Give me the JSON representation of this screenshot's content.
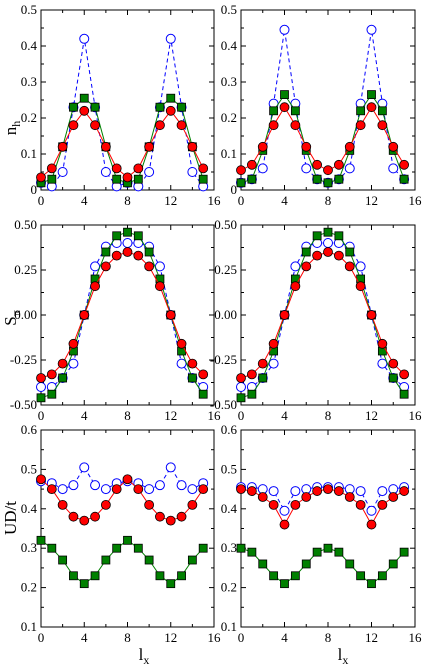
{
  "figure": {
    "row_labels": [
      "n",
      "S",
      "UD/t"
    ],
    "row_label_subs": [
      "h",
      "π",
      ""
    ],
    "xlabel": "l",
    "xlabel_sub": "x"
  },
  "chart_data": [
    {
      "type": "line",
      "row": 0,
      "col": 0,
      "title": "",
      "ylabel": "n_h",
      "xlabel": "",
      "xlim": [
        0,
        16
      ],
      "ylim": [
        0,
        0.5
      ],
      "xticks": [
        0,
        4,
        8,
        12,
        16
      ],
      "yticks": [
        0,
        0.1,
        0.2,
        0.3,
        0.4,
        0.5
      ],
      "ytick_labels": [
        "0",
        "0.1",
        "0.2",
        "0.3",
        "0.4",
        "0.5"
      ],
      "x": [
        0,
        1,
        2,
        3,
        4,
        5,
        6,
        7,
        8,
        9,
        10,
        11,
        12,
        13,
        14,
        15
      ],
      "series": [
        {
          "marker": "circle-open",
          "color": "#0000ff",
          "dash": true,
          "values": [
            0.02,
            0.01,
            0.05,
            0.23,
            0.42,
            0.23,
            0.05,
            0.01,
            0.02,
            0.01,
            0.05,
            0.23,
            0.42,
            0.23,
            0.05,
            0.01
          ]
        },
        {
          "marker": "square",
          "color": "#008000",
          "dash": false,
          "values": [
            0.02,
            0.03,
            0.12,
            0.23,
            0.255,
            0.23,
            0.12,
            0.03,
            0.02,
            0.03,
            0.12,
            0.23,
            0.255,
            0.23,
            0.12,
            0.03
          ]
        },
        {
          "marker": "circle",
          "color": "#ff0000",
          "dash": false,
          "values": [
            0.035,
            0.06,
            0.12,
            0.18,
            0.22,
            0.18,
            0.12,
            0.06,
            0.035,
            0.06,
            0.12,
            0.18,
            0.22,
            0.18,
            0.12,
            0.06
          ]
        }
      ]
    },
    {
      "type": "line",
      "row": 0,
      "col": 1,
      "title": "",
      "ylabel": "",
      "xlabel": "",
      "xlim": [
        0,
        16
      ],
      "ylim": [
        0,
        0.5
      ],
      "xticks": [
        0,
        4,
        8,
        12,
        16
      ],
      "yticks": [
        0,
        0.1,
        0.2,
        0.3,
        0.4,
        0.5
      ],
      "ytick_labels": [
        "0",
        "0.1",
        "0.2",
        "0.3",
        "0.4",
        "0.5"
      ],
      "x": [
        0,
        1,
        2,
        3,
        4,
        5,
        6,
        7,
        8,
        9,
        10,
        11,
        12,
        13,
        14,
        15
      ],
      "series": [
        {
          "marker": "circle-open",
          "color": "#0000ff",
          "dash": true,
          "values": [
            0.02,
            0.03,
            0.06,
            0.24,
            0.445,
            0.24,
            0.06,
            0.03,
            0.02,
            0.03,
            0.06,
            0.24,
            0.445,
            0.24,
            0.06,
            0.03
          ]
        },
        {
          "marker": "square",
          "color": "#008000",
          "dash": false,
          "values": [
            0.02,
            0.03,
            0.11,
            0.22,
            0.265,
            0.22,
            0.11,
            0.03,
            0.02,
            0.03,
            0.11,
            0.22,
            0.265,
            0.22,
            0.11,
            0.03
          ]
        },
        {
          "marker": "circle",
          "color": "#ff0000",
          "dash": false,
          "values": [
            0.055,
            0.07,
            0.12,
            0.18,
            0.23,
            0.18,
            0.12,
            0.07,
            0.055,
            0.07,
            0.12,
            0.18,
            0.23,
            0.18,
            0.12,
            0.07
          ]
        }
      ]
    },
    {
      "type": "line",
      "row": 1,
      "col": 0,
      "title": "",
      "ylabel": "S_π",
      "xlabel": "",
      "xlim": [
        0,
        16
      ],
      "ylim": [
        -0.5,
        0.5
      ],
      "xticks": [
        0,
        4,
        8,
        12,
        16
      ],
      "yticks": [
        -0.5,
        -0.25,
        0,
        0.25,
        0.5
      ],
      "ytick_labels": [
        "-0.50",
        "-0.25",
        "0.00",
        "0.25",
        "0.50"
      ],
      "x": [
        0,
        1,
        2,
        3,
        4,
        5,
        6,
        7,
        8,
        9,
        10,
        11,
        12,
        13,
        14,
        15
      ],
      "series": [
        {
          "marker": "circle-open",
          "color": "#0000ff",
          "dash": true,
          "values": [
            -0.4,
            -0.4,
            -0.35,
            -0.27,
            0.0,
            0.27,
            0.38,
            0.4,
            0.4,
            0.4,
            0.38,
            0.27,
            0.0,
            -0.27,
            -0.35,
            -0.4
          ]
        },
        {
          "marker": "square",
          "color": "#008000",
          "dash": false,
          "values": [
            -0.46,
            -0.44,
            -0.35,
            -0.2,
            0.0,
            0.2,
            0.35,
            0.44,
            0.46,
            0.44,
            0.35,
            0.2,
            0.0,
            -0.2,
            -0.35,
            -0.44
          ]
        },
        {
          "marker": "circle",
          "color": "#ff0000",
          "dash": false,
          "values": [
            -0.35,
            -0.33,
            -0.27,
            -0.16,
            0.0,
            0.16,
            0.27,
            0.33,
            0.35,
            0.33,
            0.27,
            0.16,
            0.0,
            -0.16,
            -0.27,
            -0.33
          ]
        }
      ]
    },
    {
      "type": "line",
      "row": 1,
      "col": 1,
      "title": "",
      "ylabel": "",
      "xlabel": "",
      "xlim": [
        0,
        16
      ],
      "ylim": [
        -0.5,
        0.5
      ],
      "xticks": [
        0,
        4,
        8,
        12,
        16
      ],
      "yticks": [
        -0.5,
        -0.25,
        0,
        0.25,
        0.5
      ],
      "ytick_labels": [
        "-0.50",
        "-0.25",
        "0.00",
        "0.25",
        "0.50"
      ],
      "x": [
        0,
        1,
        2,
        3,
        4,
        5,
        6,
        7,
        8,
        9,
        10,
        11,
        12,
        13,
        14,
        15
      ],
      "series": [
        {
          "marker": "circle-open",
          "color": "#0000ff",
          "dash": true,
          "values": [
            -0.4,
            -0.4,
            -0.35,
            -0.27,
            0.0,
            0.27,
            0.38,
            0.4,
            0.4,
            0.4,
            0.38,
            0.27,
            0.0,
            -0.27,
            -0.35,
            -0.4
          ]
        },
        {
          "marker": "square",
          "color": "#008000",
          "dash": false,
          "values": [
            -0.46,
            -0.44,
            -0.35,
            -0.2,
            0.0,
            0.2,
            0.35,
            0.44,
            0.46,
            0.44,
            0.35,
            0.2,
            0.0,
            -0.2,
            -0.35,
            -0.44
          ]
        },
        {
          "marker": "circle",
          "color": "#ff0000",
          "dash": false,
          "values": [
            -0.35,
            -0.33,
            -0.27,
            -0.16,
            0.0,
            0.16,
            0.27,
            0.33,
            0.35,
            0.33,
            0.27,
            0.16,
            0.0,
            -0.16,
            -0.27,
            -0.33
          ]
        }
      ]
    },
    {
      "type": "line",
      "row": 2,
      "col": 0,
      "title": "",
      "ylabel": "UD/t",
      "xlabel": "l_x",
      "xlim": [
        0,
        16
      ],
      "ylim": [
        0.1,
        0.6
      ],
      "xticks": [
        0,
        4,
        8,
        12,
        16
      ],
      "yticks": [
        0.1,
        0.2,
        0.3,
        0.4,
        0.5,
        0.6
      ],
      "ytick_labels": [
        "0.1",
        "0.2",
        "0.3",
        "0.4",
        "0.5",
        "0.6"
      ],
      "x": [
        0,
        1,
        2,
        3,
        4,
        5,
        6,
        7,
        8,
        9,
        10,
        11,
        12,
        13,
        14,
        15
      ],
      "series": [
        {
          "marker": "circle-open",
          "color": "#0000ff",
          "dash": true,
          "values": [
            0.47,
            0.465,
            0.45,
            0.46,
            0.505,
            0.46,
            0.45,
            0.465,
            0.47,
            0.465,
            0.45,
            0.46,
            0.505,
            0.46,
            0.45,
            0.465
          ]
        },
        {
          "marker": "square",
          "color": "#008000",
          "dash": false,
          "values": [
            0.32,
            0.3,
            0.27,
            0.23,
            0.21,
            0.23,
            0.27,
            0.3,
            0.32,
            0.3,
            0.27,
            0.23,
            0.21,
            0.23,
            0.27,
            0.3
          ]
        },
        {
          "marker": "circle",
          "color": "#ff0000",
          "dash": false,
          "values": [
            0.475,
            0.45,
            0.41,
            0.38,
            0.37,
            0.38,
            0.41,
            0.45,
            0.475,
            0.45,
            0.41,
            0.38,
            0.37,
            0.38,
            0.41,
            0.45
          ]
        }
      ]
    },
    {
      "type": "line",
      "row": 2,
      "col": 1,
      "title": "",
      "ylabel": "",
      "xlabel": "l_x",
      "xlim": [
        0,
        16
      ],
      "ylim": [
        0.1,
        0.6
      ],
      "xticks": [
        0,
        4,
        8,
        12,
        16
      ],
      "yticks": [
        0.1,
        0.2,
        0.3,
        0.4,
        0.5,
        0.6
      ],
      "ytick_labels": [
        "0.1",
        "0.2",
        "0.3",
        "0.4",
        "0.5",
        "0.6"
      ],
      "x": [
        0,
        1,
        2,
        3,
        4,
        5,
        6,
        7,
        8,
        9,
        10,
        11,
        12,
        13,
        14,
        15
      ],
      "series": [
        {
          "marker": "circle-open",
          "color": "#0000ff",
          "dash": true,
          "values": [
            0.455,
            0.455,
            0.45,
            0.445,
            0.395,
            0.445,
            0.45,
            0.455,
            0.455,
            0.455,
            0.45,
            0.445,
            0.395,
            0.445,
            0.45,
            0.455
          ]
        },
        {
          "marker": "square",
          "color": "#008000",
          "dash": false,
          "values": [
            0.3,
            0.29,
            0.26,
            0.23,
            0.21,
            0.23,
            0.26,
            0.29,
            0.3,
            0.29,
            0.26,
            0.23,
            0.21,
            0.23,
            0.26,
            0.29
          ]
        },
        {
          "marker": "circle",
          "color": "#ff0000",
          "dash": false,
          "values": [
            0.45,
            0.445,
            0.43,
            0.41,
            0.36,
            0.41,
            0.43,
            0.445,
            0.45,
            0.445,
            0.43,
            0.41,
            0.36,
            0.41,
            0.43,
            0.445
          ]
        }
      ]
    }
  ]
}
